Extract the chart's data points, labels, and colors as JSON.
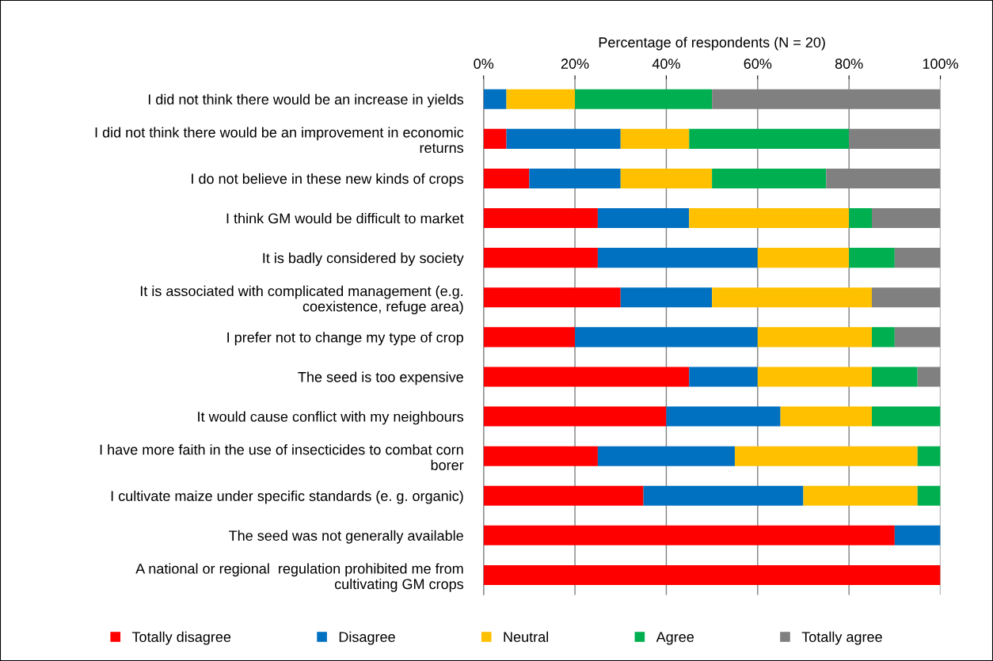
{
  "chart_data": {
    "type": "bar",
    "orientation": "horizontal",
    "stacked": true,
    "xlabel": "Percentage of respondents (N = 20)",
    "categories": [
      "I did not think there would be an increase in yields",
      "I did not think there would be an improvement in economic\nreturns",
      "I do not believe in these new kinds of crops",
      "I think GM would be difficult to market",
      "It is badly considered by society",
      "It is associated with complicated management (e.g.\ncoexistence, refuge area)",
      "I prefer not to change my type of crop",
      "The seed is too expensive",
      "It would cause conflict with my neighbours",
      "I have more faith in the use of insecticides to combat corn\nborer",
      "I cultivate maize under specific standards (e. g. organic)",
      "The seed was not generally available",
      "A national or regional  regulation prohibited me from\ncultivating GM crops"
    ],
    "series": [
      {
        "name": "Totally disagree",
        "color": "#ff0000",
        "values": [
          0,
          5,
          10,
          25,
          25,
          30,
          20,
          45,
          40,
          25,
          35,
          90,
          100
        ]
      },
      {
        "name": "Disagree",
        "color": "#0070c0",
        "values": [
          5,
          25,
          20,
          20,
          35,
          20,
          40,
          15,
          25,
          30,
          35,
          10,
          0
        ]
      },
      {
        "name": "Neutral",
        "color": "#ffc000",
        "values": [
          15,
          15,
          20,
          35,
          20,
          35,
          25,
          25,
          20,
          40,
          25,
          0,
          0
        ]
      },
      {
        "name": "Agree",
        "color": "#00b050",
        "values": [
          30,
          35,
          25,
          5,
          10,
          0,
          5,
          10,
          15,
          5,
          5,
          0,
          0
        ]
      },
      {
        "name": "Totally agree",
        "color": "#808080",
        "values": [
          50,
          20,
          25,
          15,
          10,
          15,
          10,
          5,
          0,
          0,
          0,
          0,
          0
        ]
      }
    ],
    "xlim": [
      0,
      100
    ],
    "xticks": [
      {
        "value": 0,
        "label": "0%"
      },
      {
        "value": 20,
        "label": "20%"
      },
      {
        "value": 40,
        "label": "40%"
      },
      {
        "value": 60,
        "label": "60%"
      },
      {
        "value": 80,
        "label": "80%"
      },
      {
        "value": 100,
        "label": "100%"
      }
    ],
    "grid": "x",
    "legend": "bottom"
  }
}
